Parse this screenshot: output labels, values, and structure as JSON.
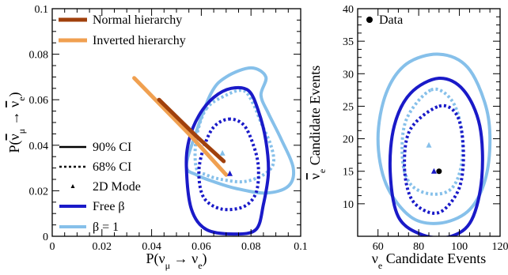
{
  "colors": {
    "normal_hierarchy": "#a0400c",
    "inverted_hierarchy": "#f0a050",
    "free_beta": "#1a1ac8",
    "beta_one": "#86c0ea",
    "axes": "#000000",
    "data_point": "#000000"
  },
  "chart_data": [
    {
      "type": "line",
      "panel": "left",
      "xlabel": {
        "base": "P(ν",
        "sub1": "μ",
        "mid": " → ν",
        "sub2": "e",
        "end": ")"
      },
      "ylabel": {
        "base": "P(",
        "nu1": "ν",
        "sub1": "μ",
        "mid": " → ",
        "nu2": "ν",
        "sub2": "e",
        "end": ")"
      },
      "xlim": [
        0,
        0.1
      ],
      "ylim": [
        0,
        0.1
      ],
      "xticks": [
        "0",
        "0.02",
        "0.04",
        "0.06",
        "0.08",
        "0.1"
      ],
      "xtick_values": [
        0,
        0.02,
        0.04,
        0.06,
        0.08,
        0.1
      ],
      "yticks": [
        "0",
        "0.02",
        "0.04",
        "0.06",
        "0.08",
        "0.1"
      ],
      "ytick_values": [
        0,
        0.02,
        0.04,
        0.06,
        0.08,
        0.1
      ],
      "legend_top": [
        {
          "label": "Normal hierarchy",
          "color_key": "normal_hierarchy"
        },
        {
          "label": "Inverted hierarchy",
          "color_key": "inverted_hierarchy"
        }
      ],
      "legend_bottom": [
        {
          "label": "90% CI",
          "style": "solid"
        },
        {
          "label": "68% CI",
          "style": "dotted"
        },
        {
          "label": "2D Mode",
          "style": "marker"
        },
        {
          "label": "Free β",
          "style": "line",
          "color_key": "free_beta"
        },
        {
          "label": "β = 1",
          "style": "line",
          "color_key": "beta_one"
        }
      ],
      "hierarchy_bands": [
        {
          "name": "Inverted hierarchy",
          "color_key": "inverted_hierarchy",
          "points": [
            [
              0.033,
              0.0695
            ],
            [
              0.055,
              0.045
            ],
            [
              0.07,
              0.027
            ]
          ]
        },
        {
          "name": "Normal hierarchy",
          "color_key": "normal_hierarchy",
          "points": [
            [
              0.043,
              0.06
            ],
            [
              0.058,
              0.044
            ],
            [
              0.069,
              0.033
            ]
          ]
        }
      ],
      "contours": [
        {
          "name": "beta1_90",
          "color_key": "beta_one",
          "style": "solid",
          "points": [
            [
              0.064,
              0.063
            ],
            [
              0.07,
              0.07
            ],
            [
              0.08,
              0.074
            ],
            [
              0.086,
              0.07
            ],
            [
              0.084,
              0.062
            ],
            [
              0.087,
              0.054
            ],
            [
              0.092,
              0.043
            ],
            [
              0.097,
              0.03
            ],
            [
              0.095,
              0.022
            ],
            [
              0.086,
              0.019
            ],
            [
              0.074,
              0.021
            ],
            [
              0.065,
              0.024
            ],
            [
              0.058,
              0.027
            ],
            [
              0.054,
              0.031
            ],
            [
              0.058,
              0.046
            ],
            [
              0.064,
              0.063
            ]
          ]
        },
        {
          "name": "beta1_68",
          "color_key": "beta_one",
          "style": "dotted",
          "points": [
            [
              0.062,
              0.056
            ],
            [
              0.07,
              0.062
            ],
            [
              0.077,
              0.064
            ],
            [
              0.081,
              0.058
            ],
            [
              0.084,
              0.05
            ],
            [
              0.088,
              0.04
            ],
            [
              0.089,
              0.032
            ],
            [
              0.085,
              0.027
            ],
            [
              0.077,
              0.024
            ],
            [
              0.068,
              0.025
            ],
            [
              0.062,
              0.027
            ],
            [
              0.058,
              0.03
            ],
            [
              0.058,
              0.043
            ],
            [
              0.062,
              0.056
            ]
          ]
        },
        {
          "name": "free_90",
          "color_key": "free_beta",
          "style": "solid",
          "points": [
            [
              0.072,
              0.065
            ],
            [
              0.079,
              0.064
            ],
            [
              0.083,
              0.055
            ],
            [
              0.086,
              0.042
            ],
            [
              0.087,
              0.028
            ],
            [
              0.085,
              0.014
            ],
            [
              0.082,
              0.003
            ],
            [
              0.073,
              0.001
            ],
            [
              0.062,
              0.003
            ],
            [
              0.056,
              0.012
            ],
            [
              0.054,
              0.03
            ],
            [
              0.055,
              0.042
            ],
            [
              0.059,
              0.053
            ],
            [
              0.065,
              0.061
            ],
            [
              0.072,
              0.065
            ]
          ]
        },
        {
          "name": "free_68",
          "color_key": "free_beta",
          "style": "dotted",
          "points": [
            [
              0.071,
              0.0515
            ],
            [
              0.077,
              0.049
            ],
            [
              0.081,
              0.04
            ],
            [
              0.083,
              0.03
            ],
            [
              0.082,
              0.019
            ],
            [
              0.077,
              0.013
            ],
            [
              0.068,
              0.012
            ],
            [
              0.061,
              0.017
            ],
            [
              0.059,
              0.028
            ],
            [
              0.061,
              0.039
            ],
            [
              0.065,
              0.048
            ],
            [
              0.071,
              0.0515
            ]
          ]
        }
      ],
      "modes": [
        {
          "x": 0.0715,
          "y": 0.0275,
          "color_key": "free_beta"
        },
        {
          "x": 0.0685,
          "y": 0.0365,
          "color_key": "beta_one"
        }
      ]
    },
    {
      "type": "line",
      "panel": "right",
      "xlabel": {
        "base": "ν",
        "sub": "e",
        "end": " Candidate Events"
      },
      "ylabel": {
        "base": "ν",
        "sub": "e",
        "end": " Candidate Events"
      },
      "xlim": [
        50,
        120
      ],
      "ylim": [
        5,
        40
      ],
      "xticks": [
        "60",
        "80",
        "100",
        "120"
      ],
      "xtick_values": [
        60,
        80,
        100,
        120
      ],
      "yticks": [
        "10",
        "15",
        "20",
        "25",
        "30",
        "35",
        "40"
      ],
      "ytick_values": [
        10,
        15,
        20,
        25,
        30,
        35,
        40
      ],
      "legend": [
        {
          "label": "Data",
          "style": "marker"
        }
      ],
      "contours": [
        {
          "name": "beta1_90",
          "color_key": "beta_one",
          "style": "solid",
          "points": [
            [
              90,
              33.0
            ],
            [
              104,
              31.0
            ],
            [
              113,
              25.0
            ],
            [
              115,
              19.0
            ],
            [
              112,
              13.0
            ],
            [
              104,
              8.8
            ],
            [
              90,
              7.0
            ],
            [
              76,
              8.0
            ],
            [
              64,
              13.0
            ],
            [
              60,
              20.0
            ],
            [
              64,
              27.0
            ],
            [
              74,
              31.5
            ],
            [
              90,
              33.0
            ]
          ]
        },
        {
          "name": "free_90",
          "color_key": "free_beta",
          "style": "solid",
          "points": [
            [
              90,
              29.3
            ],
            [
              102,
              27.5
            ],
            [
              110,
              22.0
            ],
            [
              111,
              14.0
            ],
            [
              106,
              7.5
            ],
            [
              96,
              5.0
            ],
            [
              82,
              5.2
            ],
            [
              70,
              8.0
            ],
            [
              66,
              15.0
            ],
            [
              68,
              22.0
            ],
            [
              76,
              27.0
            ],
            [
              90,
              29.3
            ]
          ]
        },
        {
          "name": "beta1_68",
          "color_key": "beta_one",
          "style": "dotted",
          "points": [
            [
              86,
              27.5
            ],
            [
              96,
              26.0
            ],
            [
              101,
              21.5
            ],
            [
              101,
              16.0
            ],
            [
              96,
              12.3
            ],
            [
              86,
              11.5
            ],
            [
              76,
              13.0
            ],
            [
              72,
              17.0
            ],
            [
              74,
              23.0
            ],
            [
              86,
              27.5
            ]
          ]
        },
        {
          "name": "free_68",
          "color_key": "free_beta",
          "style": "dotted",
          "points": [
            [
              90,
              25.0
            ],
            [
              99,
              23.5
            ],
            [
              102,
              18.0
            ],
            [
              100,
              12.5
            ],
            [
              92,
              9.0
            ],
            [
              84,
              8.8
            ],
            [
              76,
              11.0
            ],
            [
              73,
              16.0
            ],
            [
              76,
              21.5
            ],
            [
              90,
              25.0
            ]
          ]
        }
      ],
      "modes": [
        {
          "x": 87.5,
          "y": 15.0,
          "color_key": "free_beta"
        },
        {
          "x": 85.0,
          "y": 19.0,
          "color_key": "beta_one"
        }
      ],
      "data_points": [
        {
          "x": 90,
          "y": 15
        }
      ]
    }
  ]
}
